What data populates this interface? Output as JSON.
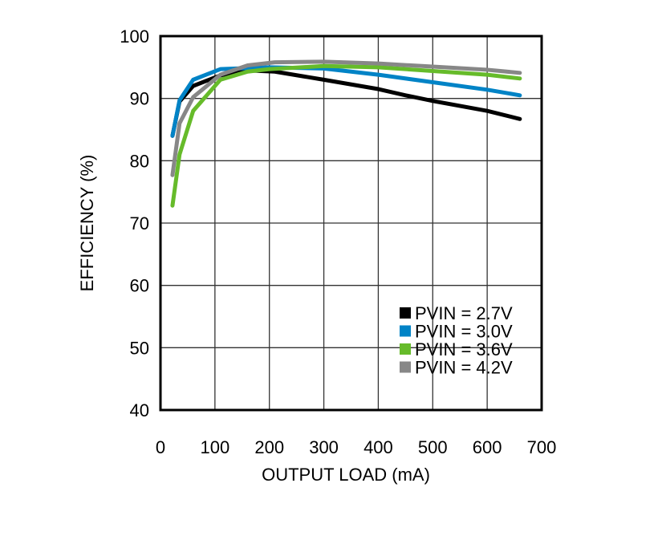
{
  "chart_data": {
    "type": "line",
    "title": "",
    "xlabel": "OUTPUT LOAD (mA)",
    "ylabel": "EFFICIENCY (%)",
    "xlim": [
      0,
      700
    ],
    "ylim": [
      40,
      100
    ],
    "xticks": [
      0,
      100,
      200,
      300,
      400,
      500,
      600,
      700
    ],
    "yticks": [
      40,
      50,
      60,
      70,
      80,
      90,
      100
    ],
    "grid": true,
    "legend_position": "bottom-right",
    "series": [
      {
        "name": "PVIN = 2.7V",
        "color": "#000000",
        "x": [
          22,
          35,
          60,
          110,
          160,
          210,
          300,
          400,
          450,
          500,
          600,
          660
        ],
        "y": [
          84,
          89.5,
          92,
          93.7,
          94.5,
          94.3,
          93,
          91.5,
          90.5,
          89.6,
          88,
          86.7
        ]
      },
      {
        "name": "PVIN = 3.0V",
        "color": "#0083c6",
        "x": [
          22,
          35,
          60,
          110,
          200,
          300,
          400,
          500,
          600,
          660
        ],
        "y": [
          84,
          89.7,
          93,
          94.7,
          95,
          94.8,
          93.8,
          92.6,
          91.4,
          90.5
        ]
      },
      {
        "name": "PVIN = 3.6V",
        "color": "#66bb2a",
        "x": [
          22,
          35,
          60,
          110,
          160,
          200,
          300,
          400,
          500,
          600,
          660
        ],
        "y": [
          72.8,
          81,
          88,
          93,
          94.3,
          94.7,
          95.2,
          95,
          94.4,
          93.8,
          93.2
        ]
      },
      {
        "name": "PVIN = 4.2V",
        "color": "#878787",
        "x": [
          22,
          35,
          60,
          110,
          160,
          210,
          300,
          400,
          500,
          600,
          660
        ],
        "y": [
          77.7,
          86,
          90.2,
          93.8,
          95.3,
          95.8,
          95.9,
          95.6,
          95.1,
          94.6,
          94.1
        ]
      }
    ]
  }
}
